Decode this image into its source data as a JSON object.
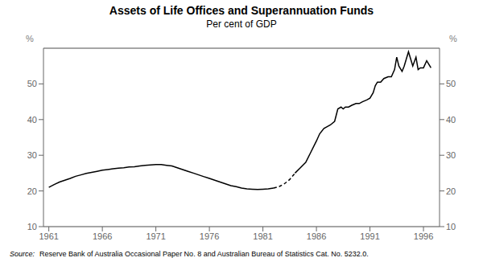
{
  "chart_data": {
    "type": "line",
    "title": "Assets of Life Offices and Superannuation Funds",
    "subtitle": "Per cent of GDP",
    "y_label": "%",
    "y2_label": "%",
    "source_label": "Source:",
    "source": "Reserve Bank of Australia Occasional Paper No. 8 and Australian Bureau of Statistics Cat. No. 5232.0.",
    "xlim": [
      1960.5,
      1997.5
    ],
    "xticks": [
      1961,
      1966,
      1971,
      1976,
      1981,
      1986,
      1991,
      1996
    ],
    "ylim": [
      10,
      60
    ],
    "yticks": [
      10,
      20,
      30,
      40,
      50
    ],
    "y2lim": [
      10,
      60
    ],
    "y2ticks": [
      10,
      20,
      30,
      40,
      50
    ],
    "grid": true,
    "series": [
      {
        "color": "#000000",
        "line_style": "solid",
        "x": [
          1961,
          1961.5,
          1962,
          1962.5,
          1963,
          1963.5,
          1964,
          1964.5,
          1965,
          1965.5,
          1966,
          1966.5,
          1967,
          1967.5,
          1968,
          1968.5,
          1969,
          1969.5,
          1970,
          1970.5,
          1971,
          1971.5,
          1972,
          1972.5,
          1973,
          1973.5,
          1974,
          1974.5,
          1975,
          1975.5,
          1976,
          1976.5,
          1977,
          1977.5,
          1978,
          1978.5,
          1979,
          1979.5,
          1980,
          1980.5,
          1981,
          1981.5,
          1982
        ],
        "values": [
          21.0,
          21.8,
          22.5,
          23.0,
          23.5,
          24.1,
          24.5,
          24.9,
          25.2,
          25.5,
          25.8,
          26.0,
          26.2,
          26.4,
          26.5,
          26.7,
          26.8,
          27.0,
          27.2,
          27.3,
          27.4,
          27.4,
          27.2,
          27.0,
          26.5,
          26.0,
          25.5,
          25.0,
          24.5,
          24.0,
          23.5,
          23.0,
          22.5,
          22.0,
          21.5,
          21.2,
          20.8,
          20.6,
          20.5,
          20.4,
          20.5,
          20.6,
          20.8
        ]
      },
      {
        "color": "#000000",
        "line_style": "dashed",
        "x": [
          1982,
          1982.5,
          1983,
          1983.5,
          1984
        ],
        "values": [
          20.8,
          21.2,
          22.0,
          23.2,
          25.0
        ]
      },
      {
        "color": "#000000",
        "line_style": "solid",
        "x": [
          1984,
          1984.5,
          1985,
          1985.5,
          1986,
          1986.3,
          1986.7,
          1987,
          1987.3,
          1987.7,
          1988,
          1988.3,
          1988.5,
          1988.7,
          1989,
          1989.3,
          1989.7,
          1990,
          1990.3,
          1990.7,
          1991,
          1991.3,
          1991.5,
          1991.7,
          1992,
          1992.3,
          1992.7,
          1993,
          1993.3,
          1993.5,
          1993.7,
          1994,
          1994.2,
          1994.4,
          1994.6,
          1994.8,
          1995,
          1995.3,
          1995.5,
          1995.7,
          1996,
          1996.3,
          1996.7
        ],
        "values": [
          25.0,
          26.5,
          28.0,
          31.0,
          34.0,
          36.0,
          37.5,
          38.0,
          38.5,
          39.5,
          43.0,
          43.5,
          43.0,
          43.5,
          43.5,
          44.0,
          44.5,
          44.5,
          45.0,
          45.5,
          46.0,
          47.5,
          49.5,
          50.5,
          50.5,
          51.5,
          52.0,
          52.0,
          54.0,
          57.5,
          55.0,
          53.5,
          55.0,
          57.0,
          59.0,
          57.0,
          55.0,
          57.5,
          54.0,
          54.5,
          54.5,
          56.5,
          54.5
        ]
      }
    ]
  }
}
